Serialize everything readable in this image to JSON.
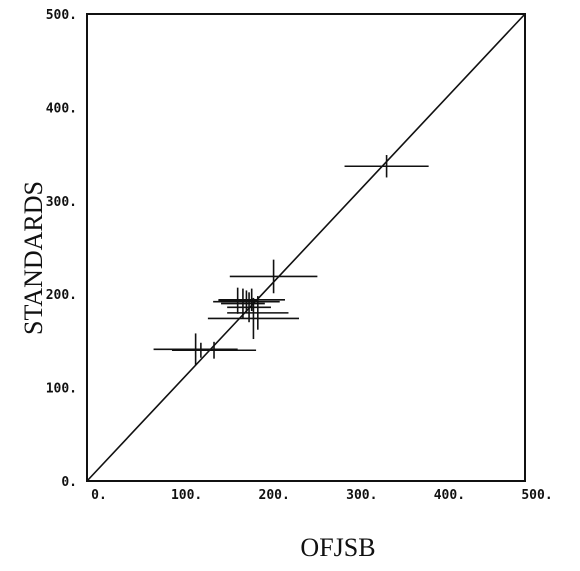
{
  "chart_data": {
    "type": "scatter",
    "xlabel": "OFJSB",
    "ylabel": "STANDARDS",
    "xlim": [
      0,
      500
    ],
    "ylim": [
      0,
      500
    ],
    "x_ticks": [
      "0.",
      "100.",
      "200.",
      "300.",
      "400.",
      "500."
    ],
    "y_ticks": [
      "0.",
      "100.",
      "200.",
      "300.",
      "400.",
      "500."
    ],
    "grid": false,
    "reference_line": {
      "x": [
        0,
        500
      ],
      "y": [
        0,
        500
      ]
    },
    "points": [
      {
        "x": 342,
        "y": 337,
        "x_err": 48,
        "y_err": 12
      },
      {
        "x": 213,
        "y": 219,
        "x_err": 50,
        "y_err": 18
      },
      {
        "x": 188,
        "y": 194,
        "x_err": 38,
        "y_err": 12
      },
      {
        "x": 182,
        "y": 192,
        "x_err": 38,
        "y_err": 12
      },
      {
        "x": 172,
        "y": 193,
        "x_err": 22,
        "y_err": 14
      },
      {
        "x": 178,
        "y": 190,
        "x_err": 25,
        "y_err": 16
      },
      {
        "x": 195,
        "y": 180,
        "x_err": 35,
        "y_err": 18
      },
      {
        "x": 185,
        "y": 186,
        "x_err": 25,
        "y_err": 16
      },
      {
        "x": 190,
        "y": 174,
        "x_err": 52,
        "y_err": 22
      },
      {
        "x": 124,
        "y": 141,
        "x_err": 48,
        "y_err": 17
      },
      {
        "x": 145,
        "y": 140,
        "x_err": 48,
        "y_err": 9
      },
      {
        "x": 130,
        "y": 140,
        "x_err": 25,
        "y_err": 8
      }
    ]
  }
}
